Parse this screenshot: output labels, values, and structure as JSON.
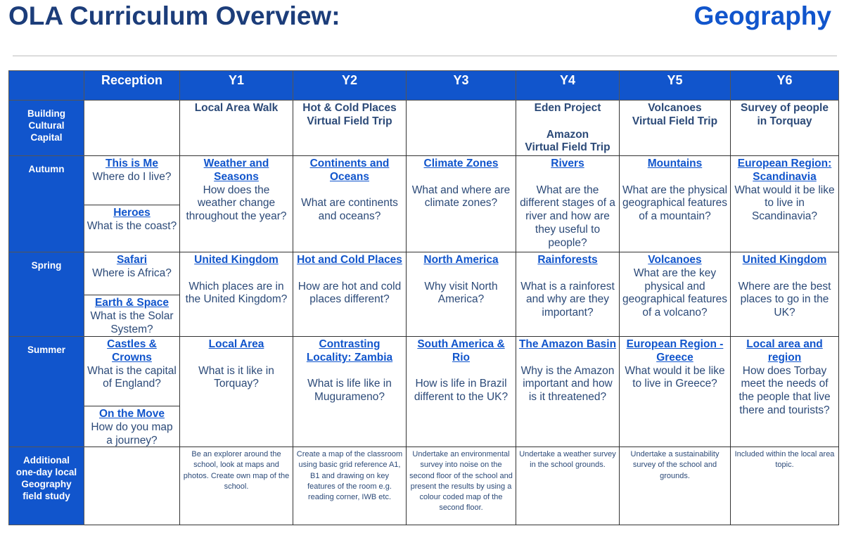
{
  "header": {
    "title": "OLA Curriculum Overview:",
    "subject": "Geography"
  },
  "colors": {
    "header_blue": "#1155cc",
    "text_navy": "#2c4a78",
    "link_blue": "#1155cc"
  },
  "columns": [
    "Reception",
    "Y1",
    "Y2",
    "Y3",
    "Y4",
    "Y5",
    "Y6"
  ],
  "rows": {
    "building": {
      "label": "Building Cultural Capital",
      "reception": [],
      "cells": [
        {
          "text": "Local Area Walk"
        },
        {
          "text": "Hot & Cold Places\nVirtual Field Trip"
        },
        {
          "text": ""
        },
        {
          "text": "Eden Project\n\nAmazon\nVirtual Field Trip"
        },
        {
          "text": "Volcanoes\nVirtual Field Trip"
        },
        {
          "text": "Survey of people\nin Torquay"
        }
      ]
    },
    "autumn": {
      "label": "Autumn",
      "reception": [
        {
          "link": "This is Me",
          "text": "Where do I live?"
        },
        {
          "link": "Heroes",
          "text": "What is the coast?"
        }
      ],
      "cells": [
        {
          "link": "Weather and Seasons",
          "text": "How does the weather change throughout the year?"
        },
        {
          "link": "Continents and Oceans",
          "text": "What are continents and oceans?"
        },
        {
          "link": "Climate Zones",
          "text": "What and where are climate zones?"
        },
        {
          "link": "Rivers",
          "text": "What are the different stages of a river and how are they useful to people?"
        },
        {
          "link": "Mountains",
          "text": "What are the physical geographical features of a mountain?"
        },
        {
          "link": "European Region: Scandinavia",
          "text": "What would it be like to live in Scandinavia?"
        }
      ]
    },
    "spring": {
      "label": "Spring",
      "reception": [
        {
          "link": "Safari",
          "text": "Where is Africa?"
        },
        {
          "link": "Earth & Space",
          "text": "What is the Solar System?"
        }
      ],
      "cells": [
        {
          "link": "United Kingdom",
          "text": "Which places are in the United Kingdom?"
        },
        {
          "link": "Hot and Cold Places",
          "text": "How are hot and cold places different?"
        },
        {
          "link": "North America",
          "text": "Why visit North America?"
        },
        {
          "link": "Rainforests",
          "text": "What is a rainforest and why are they important?"
        },
        {
          "link": "Volcanoes",
          "text": "What are the key physical and geographical features of a volcano?"
        },
        {
          "link": "United Kingdom",
          "text": "Where are the best places to go in the UK?"
        }
      ]
    },
    "summer": {
      "label": "Summer",
      "reception": [
        {
          "link": "Castles & Crowns",
          "text": "What is the capital of England?"
        },
        {
          "link": "On the Move",
          "text": "How do you map a journey?"
        }
      ],
      "cells": [
        {
          "link": "Local Area",
          "text": "What is it like in Torquay?"
        },
        {
          "link": "Contrasting Locality: Zambia",
          "text": "What is life like in Mugurameno?"
        },
        {
          "link": "South America & Rio",
          "text": "How is life in Brazil different to the UK?"
        },
        {
          "link": "The Amazon Basin",
          "text": "Why is the Amazon important and how is it threatened?"
        },
        {
          "link": "European Region - Greece",
          "text": "What would it be like to live in Greece?"
        },
        {
          "link": "Local area and region",
          "text": "How does Torbay meet the needs of the people that live there and tourists?"
        }
      ]
    },
    "fieldstudy": {
      "label": "Additional one-day local Geography field study",
      "reception": [],
      "cells": [
        {
          "text": "Be an explorer around the school, look at maps and photos.  Create own map of the school."
        },
        {
          "text": "Create a map of the classroom using basic grid reference A1, B1  and drawing on key features of the room e.g. reading corner, IWB etc."
        },
        {
          "text": "Undertake an environmental survey into noise on the second floor of the school and present the results by using a colour coded map of the second floor."
        },
        {
          "text": "Undertake a weather survey in the school grounds."
        },
        {
          "text": "Undertake a sustainability survey of the school and grounds."
        },
        {
          "text": "Included within the local area topic."
        }
      ]
    }
  }
}
